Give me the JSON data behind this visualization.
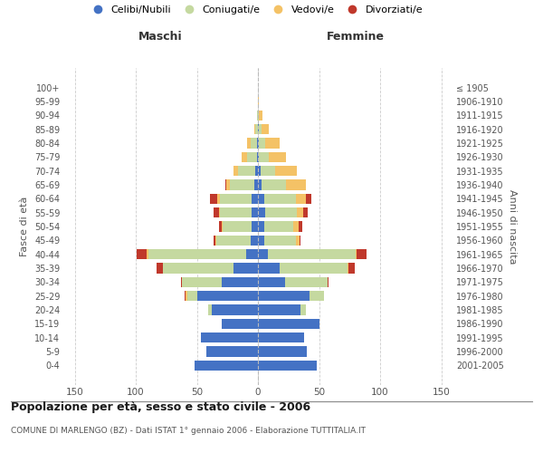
{
  "age_groups": [
    "0-4",
    "5-9",
    "10-14",
    "15-19",
    "20-24",
    "25-29",
    "30-34",
    "35-39",
    "40-44",
    "45-49",
    "50-54",
    "55-59",
    "60-64",
    "65-69",
    "70-74",
    "75-79",
    "80-84",
    "85-89",
    "90-94",
    "95-99",
    "100+"
  ],
  "birth_years": [
    "2001-2005",
    "1996-2000",
    "1991-1995",
    "1986-1990",
    "1981-1985",
    "1976-1980",
    "1971-1975",
    "1966-1970",
    "1961-1965",
    "1956-1960",
    "1951-1955",
    "1946-1950",
    "1941-1945",
    "1936-1940",
    "1931-1935",
    "1926-1930",
    "1921-1925",
    "1916-1920",
    "1911-1915",
    "1906-1910",
    "≤ 1905"
  ],
  "maschi": {
    "celibi": [
      52,
      42,
      47,
      30,
      38,
      50,
      30,
      20,
      10,
      6,
      5,
      5,
      5,
      3,
      2,
      1,
      1,
      0,
      0,
      0,
      0
    ],
    "coniugati": [
      0,
      0,
      0,
      0,
      3,
      8,
      32,
      58,
      80,
      28,
      24,
      26,
      26,
      20,
      14,
      8,
      5,
      2,
      1,
      0,
      0
    ],
    "vedovi": [
      0,
      0,
      0,
      0,
      0,
      1,
      0,
      0,
      1,
      1,
      1,
      1,
      2,
      3,
      4,
      4,
      3,
      1,
      0,
      0,
      0
    ],
    "divorziati": [
      0,
      0,
      0,
      0,
      0,
      1,
      1,
      5,
      8,
      1,
      2,
      4,
      6,
      1,
      0,
      0,
      0,
      0,
      0,
      0,
      0
    ]
  },
  "femmine": {
    "nubili": [
      48,
      40,
      38,
      50,
      35,
      42,
      22,
      18,
      8,
      5,
      5,
      6,
      5,
      3,
      2,
      1,
      1,
      1,
      0,
      0,
      0
    ],
    "coniugate": [
      0,
      0,
      0,
      0,
      4,
      12,
      35,
      55,
      72,
      26,
      24,
      26,
      26,
      20,
      12,
      8,
      5,
      2,
      1,
      0,
      0
    ],
    "vedove": [
      0,
      0,
      0,
      0,
      0,
      0,
      0,
      1,
      1,
      3,
      4,
      5,
      8,
      16,
      18,
      14,
      12,
      6,
      3,
      1,
      0
    ],
    "divorziate": [
      0,
      0,
      0,
      0,
      0,
      0,
      1,
      5,
      8,
      1,
      3,
      4,
      5,
      0,
      0,
      0,
      0,
      0,
      0,
      0,
      0
    ]
  },
  "colors": {
    "celibi": "#4472C4",
    "coniugati": "#C5D9A0",
    "vedovi": "#F4C266",
    "divorziati": "#C0382B"
  },
  "title": "Popolazione per età, sesso e stato civile - 2006",
  "subtitle": "COMUNE DI MARLENGO (BZ) - Dati ISTAT 1° gennaio 2006 - Elaborazione TUTTITALIA.IT",
  "label_maschi": "Maschi",
  "label_femmine": "Femmine",
  "ylabel_left": "Fasce di età",
  "ylabel_right": "Anni di nascita",
  "xlim": 160,
  "xticks": [
    -150,
    -100,
    -50,
    0,
    50,
    100,
    150
  ],
  "legend_labels": [
    "Celibi/Nubili",
    "Coniugati/e",
    "Vedovi/e",
    "Divorziati/e"
  ],
  "background_color": "#ffffff",
  "grid_color": "#cccccc",
  "bar_height": 0.75
}
